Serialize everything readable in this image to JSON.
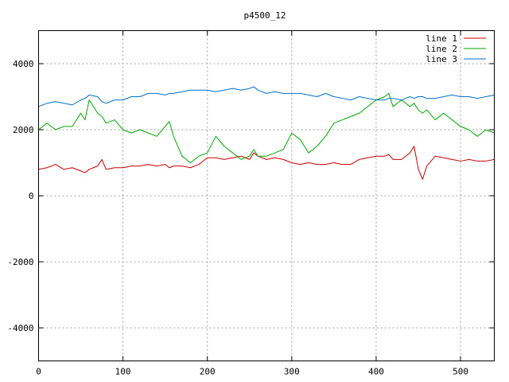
{
  "chart_data": {
    "type": "line",
    "title": "p4500_12",
    "xlabel": "",
    "ylabel": "",
    "xlim": [
      0,
      540
    ],
    "ylim": [
      -5000,
      5000
    ],
    "x_ticks": [
      0,
      100,
      200,
      300,
      400,
      500
    ],
    "y_ticks": [
      -4000,
      -2000,
      0,
      2000,
      4000
    ],
    "grid": true,
    "legend_position": "top-right",
    "x": [
      0,
      10,
      20,
      30,
      40,
      50,
      55,
      60,
      70,
      75,
      80,
      90,
      100,
      110,
      120,
      130,
      140,
      150,
      155,
      160,
      170,
      180,
      190,
      200,
      210,
      220,
      230,
      240,
      250,
      255,
      260,
      270,
      280,
      290,
      300,
      310,
      320,
      330,
      340,
      350,
      360,
      370,
      380,
      390,
      400,
      410,
      415,
      420,
      430,
      440,
      445,
      450,
      455,
      460,
      470,
      480,
      490,
      500,
      510,
      520,
      530,
      540
    ],
    "series": [
      {
        "name": "line 1",
        "color": "#cc0000",
        "values": [
          800,
          850,
          950,
          800,
          850,
          750,
          700,
          800,
          900,
          1100,
          800,
          850,
          850,
          900,
          900,
          950,
          900,
          950,
          850,
          900,
          900,
          850,
          950,
          1150,
          1150,
          1100,
          1150,
          1200,
          1100,
          1300,
          1200,
          1100,
          1150,
          1100,
          1000,
          950,
          1000,
          950,
          950,
          1000,
          950,
          950,
          1100,
          1150,
          1200,
          1200,
          1250,
          1100,
          1100,
          1300,
          1500,
          800,
          500,
          900,
          1200,
          1150,
          1100,
          1050,
          1100,
          1050,
          1050,
          1100
        ]
      },
      {
        "name": "line 2",
        "color": "#00aa00",
        "values": [
          2000,
          2200,
          2000,
          2100,
          2100,
          2500,
          2300,
          2900,
          2500,
          2400,
          2200,
          2300,
          2000,
          1900,
          2000,
          1900,
          1800,
          2100,
          2250,
          1800,
          1200,
          1000,
          1200,
          1300,
          1800,
          1500,
          1300,
          1100,
          1200,
          1400,
          1200,
          1200,
          1300,
          1400,
          1900,
          1700,
          1300,
          1500,
          1800,
          2200,
          2300,
          2400,
          2500,
          2700,
          2900,
          3000,
          3100,
          2700,
          2900,
          2700,
          2800,
          2600,
          2500,
          2600,
          2300,
          2500,
          2300,
          2100,
          2000,
          1800,
          2000,
          1900
        ]
      },
      {
        "name": "line 3",
        "color": "#0070cc",
        "values": [
          2700,
          2800,
          2850,
          2800,
          2750,
          2900,
          2950,
          3050,
          3000,
          2850,
          2800,
          2900,
          2900,
          3000,
          3000,
          3100,
          3100,
          3050,
          3100,
          3100,
          3150,
          3200,
          3200,
          3200,
          3150,
          3200,
          3250,
          3200,
          3250,
          3300,
          3200,
          3100,
          3150,
          3100,
          3100,
          3100,
          3050,
          3000,
          3100,
          3000,
          2950,
          2900,
          3000,
          2950,
          2900,
          2900,
          2950,
          2950,
          2900,
          3000,
          2950,
          3000,
          3000,
          2950,
          2950,
          3000,
          3050,
          3000,
          3000,
          2950,
          3000,
          3050
        ]
      }
    ]
  }
}
